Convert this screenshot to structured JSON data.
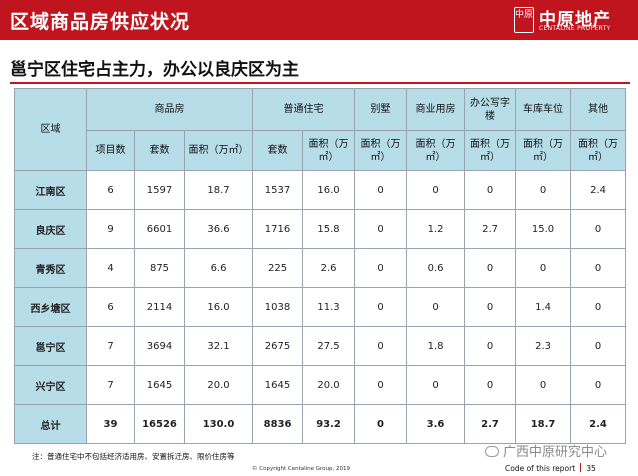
{
  "header": {
    "title": "区域商品房供应状况",
    "logo_seal": "中原",
    "logo_cn": "中原地产",
    "logo_en": "CENTALINE PROPERTY"
  },
  "subtitle": "邕宁区住宅占主力，办公以良庆区为主",
  "table": {
    "headers": {
      "region": "区域",
      "commodity": "商品房",
      "ordinary": "普通住宅",
      "villa": "别墅",
      "commercial": "商业用房",
      "office": "办公写字楼",
      "garage": "车库车位",
      "other": "其他"
    },
    "subheaders": [
      "项目数",
      "套数",
      "面积（万㎡）",
      "套数",
      "面积（万㎡）",
      "面积（万㎡）",
      "面积（万㎡）",
      "面积（万㎡）",
      "面积（万㎡）",
      "面积（万㎡）"
    ],
    "rows": [
      {
        "region": "江南区",
        "values": [
          "6",
          "1597",
          "18.7",
          "1537",
          "16.0",
          "0",
          "0",
          "0",
          "0",
          "2.4"
        ]
      },
      {
        "region": "良庆区",
        "values": [
          "9",
          "6601",
          "36.6",
          "1716",
          "15.8",
          "0",
          "1.2",
          "2.7",
          "15.0",
          "0"
        ]
      },
      {
        "region": "青秀区",
        "values": [
          "4",
          "875",
          "6.6",
          "225",
          "2.6",
          "0",
          "0.6",
          "0",
          "0",
          "0"
        ]
      },
      {
        "region": "西乡塘区",
        "values": [
          "6",
          "2114",
          "16.0",
          "1038",
          "11.3",
          "0",
          "0",
          "0",
          "1.4",
          "0"
        ]
      },
      {
        "region": "邕宁区",
        "values": [
          "7",
          "3694",
          "32.1",
          "2675",
          "27.5",
          "0",
          "1.8",
          "0",
          "2.3",
          "0"
        ]
      },
      {
        "region": "兴宁区",
        "values": [
          "7",
          "1645",
          "20.0",
          "1645",
          "20.0",
          "0",
          "0",
          "0",
          "0",
          "0"
        ]
      }
    ],
    "total": {
      "region": "总计",
      "values": [
        "39",
        "16526",
        "130.0",
        "8836",
        "93.2",
        "0",
        "3.6",
        "2.7",
        "18.7",
        "2.4"
      ]
    }
  },
  "note": "注：普通住宅中不包括经济适用房、安置拆迁房、限价住房等",
  "copyright": "© Copyright Centaline Group, 2019",
  "watermark": "广西中原研究中心",
  "footer": {
    "code_text": "Code of this report",
    "page": "35"
  }
}
